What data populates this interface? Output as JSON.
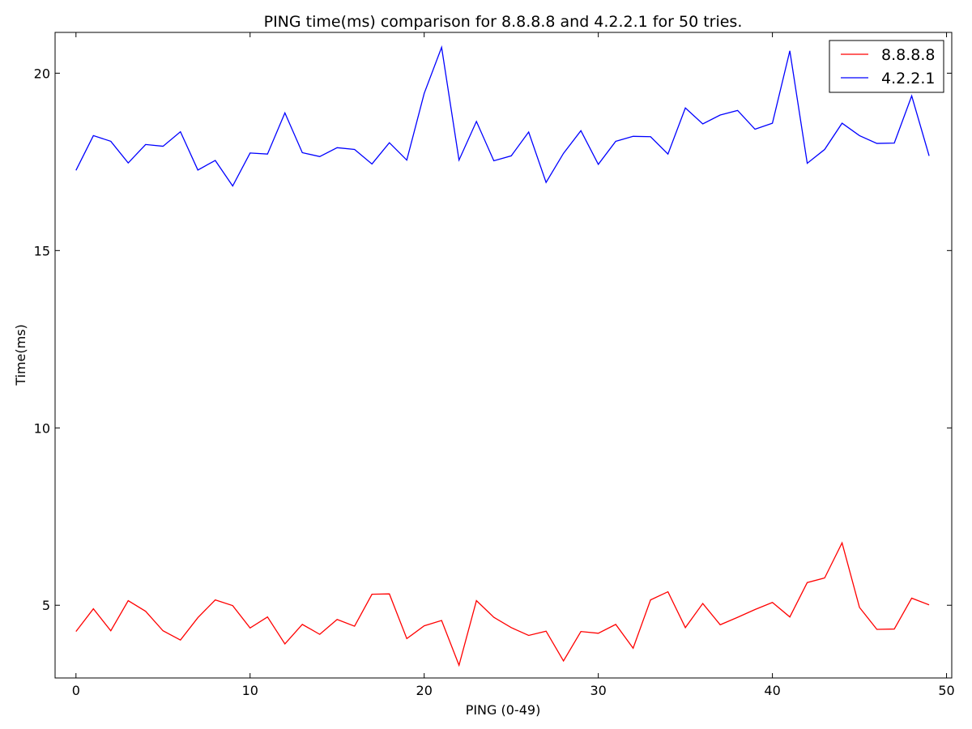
{
  "chart_data": {
    "type": "line",
    "title": "PING time(ms) comparison for 8.8.8.8 and 4.2.2.1 for 50 tries.",
    "xlabel": "PING (0-49)",
    "ylabel": "Time(ms)",
    "xlim": [
      -1.2,
      50.3
    ],
    "ylim": [
      2.95,
      21.15
    ],
    "xticks": [
      0,
      10,
      20,
      30,
      40,
      50
    ],
    "yticks": [
      5,
      10,
      15,
      20
    ],
    "grid": false,
    "legend_position": "top-right",
    "x": [
      0,
      1,
      2,
      3,
      4,
      5,
      6,
      7,
      8,
      9,
      10,
      11,
      12,
      13,
      14,
      15,
      16,
      17,
      18,
      19,
      20,
      21,
      22,
      23,
      24,
      25,
      26,
      27,
      28,
      29,
      30,
      31,
      32,
      33,
      34,
      35,
      36,
      37,
      38,
      39,
      40,
      41,
      42,
      43,
      44,
      45,
      46,
      47,
      48,
      49
    ],
    "series": [
      {
        "name": "8.8.8.8",
        "color": "#ff0000",
        "values": [
          4.26,
          4.9,
          4.28,
          5.13,
          4.83,
          4.28,
          4.02,
          4.65,
          5.15,
          4.99,
          4.36,
          4.67,
          3.91,
          4.46,
          4.18,
          4.6,
          4.41,
          5.31,
          5.32,
          4.06,
          4.42,
          4.57,
          3.31,
          5.13,
          4.66,
          4.37,
          4.15,
          4.27,
          3.43,
          4.26,
          4.21,
          4.46,
          3.79,
          5.15,
          5.38,
          4.37,
          5.05,
          4.45,
          4.66,
          4.88,
          5.08,
          4.67,
          5.64,
          5.77,
          6.76,
          4.94,
          4.32,
          4.33,
          5.2,
          5.01
        ]
      },
      {
        "name": "4.2.2.1",
        "color": "#0000ff",
        "values": [
          17.26,
          18.24,
          18.08,
          17.47,
          17.99,
          17.94,
          18.35,
          17.27,
          17.54,
          16.82,
          17.75,
          17.72,
          18.88,
          17.76,
          17.65,
          17.9,
          17.85,
          17.44,
          18.04,
          17.55,
          19.43,
          20.73,
          17.55,
          18.64,
          17.53,
          17.67,
          18.34,
          16.92,
          17.74,
          18.38,
          17.43,
          18.08,
          18.22,
          18.21,
          17.72,
          19.02,
          18.57,
          18.82,
          18.95,
          18.42,
          18.59,
          20.63,
          17.46,
          17.85,
          18.59,
          18.24,
          18.02,
          18.03,
          19.36,
          17.67
        ]
      }
    ]
  }
}
